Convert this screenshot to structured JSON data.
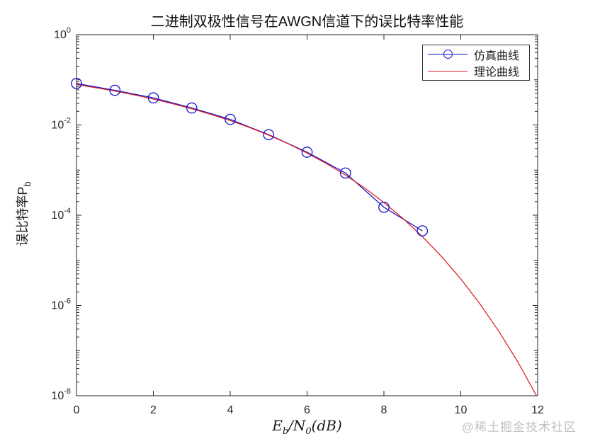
{
  "figure": {
    "watermark": "@稀土掘金技术社区"
  },
  "colors": {
    "axis": "#262626",
    "tick_text": "#262626",
    "simulation_blue": "#1414cc",
    "theory_red": "#e02222",
    "watermark_gray": "#c2c2c2"
  },
  "labels": {
    "xlabel_parts": {
      "main1": "E",
      "sub1": "b",
      "mid": "/N",
      "sub2": "0",
      "tail": "(dB)"
    },
    "ylabel_parts": {
      "main": "误比特率P",
      "sub": "b"
    }
  },
  "legend": {
    "items": [
      {
        "label": "仿真曲线"
      },
      {
        "label": "理论曲线"
      }
    ]
  },
  "chart_data": {
    "type": "line",
    "title": "二进制双极性信号在AWGN信道下的误比特率性能",
    "xlabel": "E_b/N_0(dB)",
    "ylabel": "误比特率P_b",
    "x_scale": "linear",
    "y_scale": "log",
    "xlim": [
      0,
      12
    ],
    "ylim": [
      1e-08,
      1
    ],
    "ylim_exponents": [
      -8,
      0
    ],
    "x_ticks": [
      0,
      2,
      4,
      6,
      8,
      10,
      12
    ],
    "y_ticks": [
      {
        "base": "10",
        "exp": "0"
      },
      {
        "base": "10",
        "exp": "-2"
      },
      {
        "base": "10",
        "exp": "-4"
      },
      {
        "base": "10",
        "exp": "-6"
      },
      {
        "base": "10",
        "exp": "-8"
      }
    ],
    "grid": false,
    "legend_position": "top-right",
    "series": [
      {
        "name": "仿真曲线",
        "color": "#1414cc",
        "marker": "circle",
        "x": [
          0,
          1,
          2,
          3,
          4,
          5,
          6,
          7,
          8,
          9
        ],
        "y": [
          0.083,
          0.0585,
          0.0398,
          0.0238,
          0.0133,
          0.0061,
          0.00249,
          0.00086,
          0.00015,
          4.5e-05
        ]
      },
      {
        "name": "理论曲线",
        "color": "#e02222",
        "marker": "none",
        "x": [
          0,
          0.5,
          1,
          1.5,
          2,
          2.5,
          3,
          3.5,
          4,
          4.5,
          5,
          5.5,
          6,
          6.5,
          7,
          7.5,
          8,
          8.5,
          9,
          9.5,
          10,
          10.5,
          11,
          11.5,
          12
        ],
        "y": [
          0.0786,
          0.0668,
          0.0563,
          0.0465,
          0.0375,
          0.0296,
          0.0229,
          0.0171,
          0.0125,
          0.0088,
          0.00595,
          0.00387,
          0.00239,
          0.0014,
          0.000773,
          0.0004,
          0.000191,
          8.39e-05,
          3.36e-05,
          1.21e-05,
          3.87e-06,
          1.08e-06,
          2.61e-07,
          5.33e-08,
          9e-09
        ]
      }
    ]
  }
}
